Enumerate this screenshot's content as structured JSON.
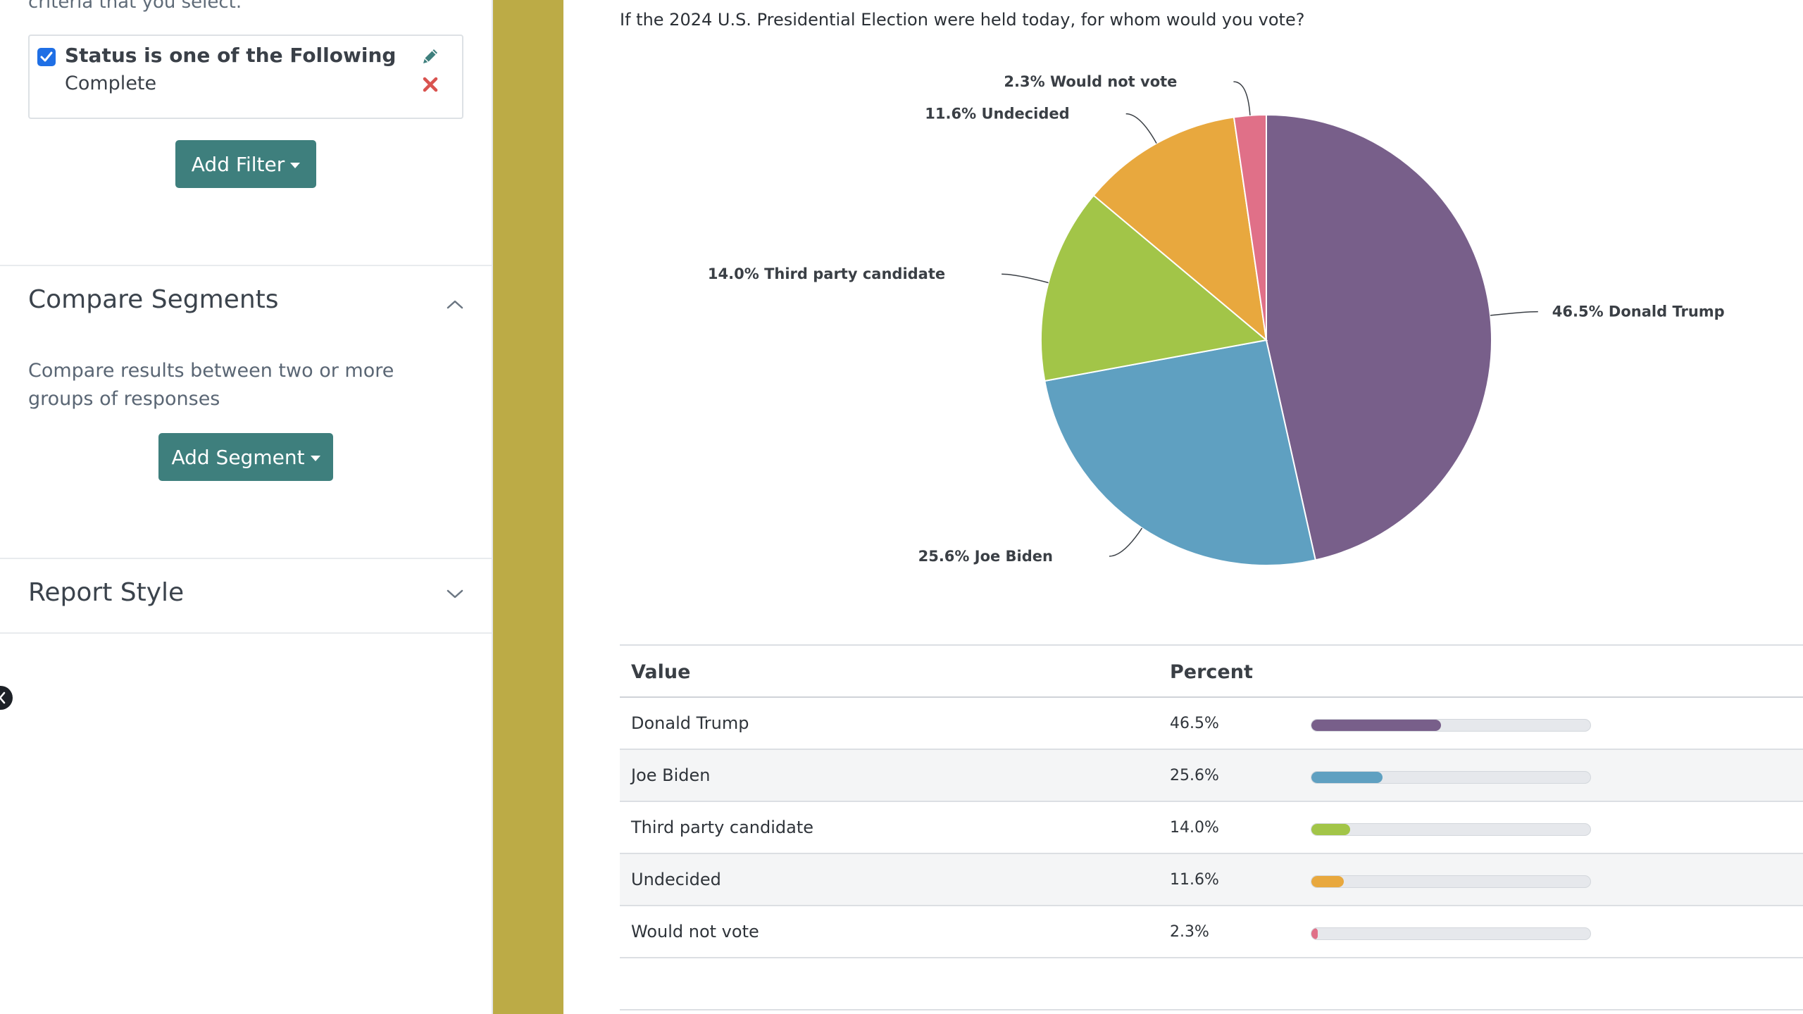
{
  "sidebar": {
    "intro_text": "criteria that you select.",
    "filter": {
      "checked": true,
      "title": "Status is one of the Following",
      "value": "Complete",
      "edit_icon": "pencil-icon",
      "remove_icon": "close-icon"
    },
    "add_filter_label": "Add Filter",
    "compare_segments": {
      "title": "Compare Segments",
      "expanded": true,
      "description": "Compare results between two or more groups of responses",
      "add_segment_label": "Add Segment"
    },
    "report_style": {
      "title": "Report Style",
      "expanded": false
    },
    "colors": {
      "button": "#3e7f7d",
      "divider_strip": "#bcab46"
    }
  },
  "main": {
    "question": "If the 2024 U.S. Presidential Election were held today, for whom would you vote?",
    "table": {
      "headers": [
        "Value",
        "Percent"
      ],
      "rows": [
        {
          "value": "Donald Trump",
          "percent": "46.5%",
          "fraction": 0.465,
          "color": "#785f8a"
        },
        {
          "value": "Joe Biden",
          "percent": "25.6%",
          "fraction": 0.256,
          "color": "#5fa0c1"
        },
        {
          "value": "Third party candidate",
          "percent": "14.0%",
          "fraction": 0.14,
          "color": "#a2c548"
        },
        {
          "value": "Undecided",
          "percent": "11.6%",
          "fraction": 0.116,
          "color": "#e8a83e"
        },
        {
          "value": "Would not vote",
          "percent": "2.3%",
          "fraction": 0.023,
          "color": "#e07088"
        }
      ]
    }
  },
  "chart_data": {
    "type": "pie",
    "title": "",
    "categories": [
      "Donald Trump",
      "Joe Biden",
      "Third party candidate",
      "Undecided",
      "Would not vote"
    ],
    "values": [
      46.5,
      25.6,
      14.0,
      11.6,
      2.3
    ],
    "labels": [
      "46.5% Donald Trump",
      "25.6% Joe Biden",
      "14.0% Third party candidate",
      "11.6% Undecided",
      "2.3% Would not vote"
    ],
    "colors": [
      "#785f8a",
      "#5fa0c1",
      "#a2c548",
      "#e8a83e",
      "#e07088"
    ]
  }
}
